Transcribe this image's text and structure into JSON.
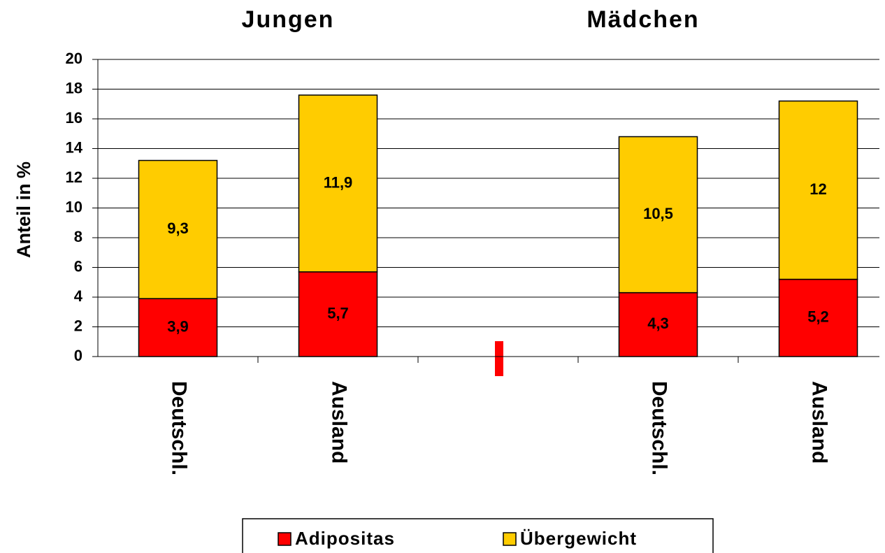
{
  "chart_data": {
    "type": "stacked_bar",
    "ylabel": "Anteil in %",
    "annotations": [
      "Jungen",
      "Mädchen"
    ],
    "categories": [
      "Deutschl.",
      "Ausland",
      null,
      "Deutschl.",
      "Ausland"
    ],
    "series": [
      {
        "name": "Adipositas",
        "color": "#ff0000",
        "values": [
          3.9,
          5.7,
          null,
          4.3,
          5.2
        ],
        "value_labels": [
          "3,9",
          "5,7",
          null,
          "4,3",
          "5,2"
        ]
      },
      {
        "name": "Übergewicht",
        "color": "#ffcc00",
        "values": [
          9.3,
          11.9,
          null,
          10.5,
          12
        ],
        "value_labels": [
          "9,3",
          "11,9",
          null,
          "10,5",
          "12"
        ]
      }
    ],
    "ylim": [
      0,
      20
    ],
    "yticks": [
      0,
      2,
      4,
      6,
      8,
      10,
      12,
      14,
      16,
      18,
      20
    ],
    "grid": true,
    "legend": "bottom"
  }
}
